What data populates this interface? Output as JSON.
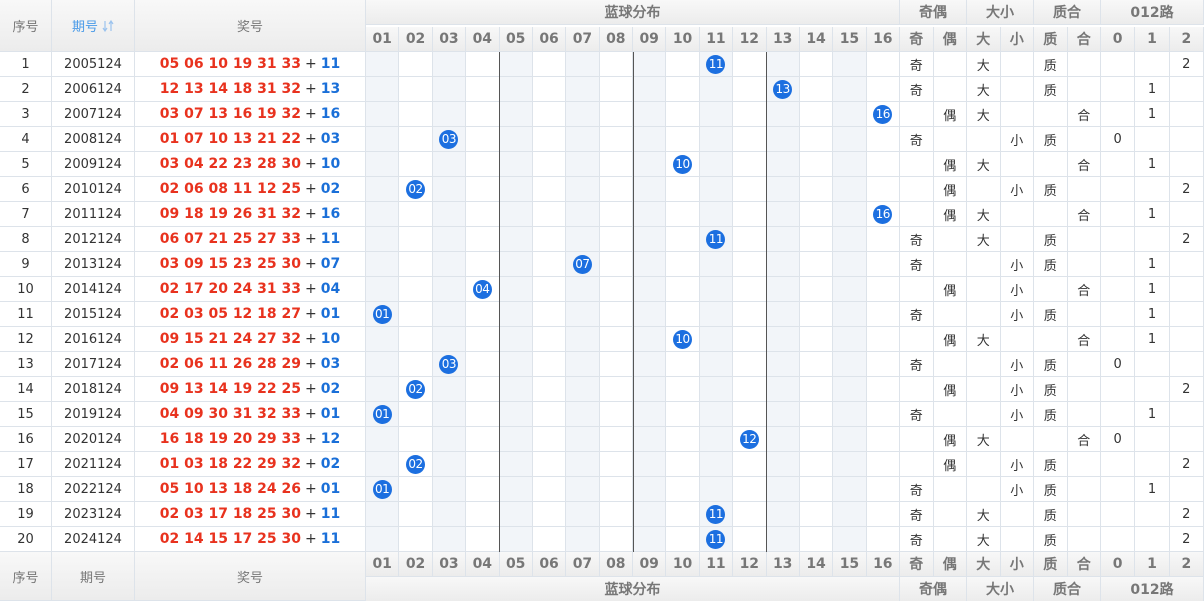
{
  "header": {
    "seq": "序号",
    "period": "期号",
    "award": "奖号",
    "blue_dist": "蓝球分布",
    "groups": [
      "奇偶",
      "大小",
      "质合",
      "012路"
    ],
    "blue_cols": [
      "01",
      "02",
      "03",
      "04",
      "05",
      "06",
      "07",
      "08",
      "09",
      "10",
      "11",
      "12",
      "13",
      "14",
      "15",
      "16"
    ],
    "sub_cols": [
      "奇",
      "偶",
      "大",
      "小",
      "质",
      "合",
      "0",
      "1",
      "2"
    ]
  },
  "rows": [
    {
      "seq": "1",
      "period": "2005124",
      "reds": "05 06 10 19 31 33",
      "plus": "+",
      "blue": "11",
      "parity": "奇",
      "size": "大",
      "prime": "质",
      "mod": "2"
    },
    {
      "seq": "2",
      "period": "2006124",
      "reds": "12 13 14 18 31 32",
      "plus": "+",
      "blue": "13",
      "parity": "奇",
      "size": "大",
      "prime": "质",
      "mod": "1"
    },
    {
      "seq": "3",
      "period": "2007124",
      "reds": "03 07 13 16 19 32",
      "plus": "+",
      "blue": "16",
      "parity": "偶",
      "size": "大",
      "prime": "合",
      "mod": "1"
    },
    {
      "seq": "4",
      "period": "2008124",
      "reds": "01 07 10 13 21 22",
      "plus": "+",
      "blue": "03",
      "parity": "奇",
      "size": "小",
      "prime": "质",
      "mod": "0"
    },
    {
      "seq": "5",
      "period": "2009124",
      "reds": "03 04 22 23 28 30",
      "plus": "+",
      "blue": "10",
      "parity": "偶",
      "size": "大",
      "prime": "合",
      "mod": "1"
    },
    {
      "seq": "6",
      "period": "2010124",
      "reds": "02 06 08 11 12 25",
      "plus": "+",
      "blue": "02",
      "parity": "偶",
      "size": "小",
      "prime": "质",
      "mod": "2"
    },
    {
      "seq": "7",
      "period": "2011124",
      "reds": "09 18 19 26 31 32",
      "plus": "+",
      "blue": "16",
      "parity": "偶",
      "size": "大",
      "prime": "合",
      "mod": "1"
    },
    {
      "seq": "8",
      "period": "2012124",
      "reds": "06 07 21 25 27 33",
      "plus": "+",
      "blue": "11",
      "parity": "奇",
      "size": "大",
      "prime": "质",
      "mod": "2"
    },
    {
      "seq": "9",
      "period": "2013124",
      "reds": "03 09 15 23 25 30",
      "plus": "+",
      "blue": "07",
      "parity": "奇",
      "size": "小",
      "prime": "质",
      "mod": "1"
    },
    {
      "seq": "10",
      "period": "2014124",
      "reds": "02 17 20 24 31 33",
      "plus": "+",
      "blue": "04",
      "parity": "偶",
      "size": "小",
      "prime": "合",
      "mod": "1"
    },
    {
      "seq": "11",
      "period": "2015124",
      "reds": "02 03 05 12 18 27",
      "plus": "+",
      "blue": "01",
      "parity": "奇",
      "size": "小",
      "prime": "质",
      "mod": "1"
    },
    {
      "seq": "12",
      "period": "2016124",
      "reds": "09 15 21 24 27 32",
      "plus": "+",
      "blue": "10",
      "parity": "偶",
      "size": "大",
      "prime": "合",
      "mod": "1"
    },
    {
      "seq": "13",
      "period": "2017124",
      "reds": "02 06 11 26 28 29",
      "plus": "+",
      "blue": "03",
      "parity": "奇",
      "size": "小",
      "prime": "质",
      "mod": "0"
    },
    {
      "seq": "14",
      "period": "2018124",
      "reds": "09 13 14 19 22 25",
      "plus": "+",
      "blue": "02",
      "parity": "偶",
      "size": "小",
      "prime": "质",
      "mod": "2"
    },
    {
      "seq": "15",
      "period": "2019124",
      "reds": "04 09 30 31 32 33",
      "plus": "+",
      "blue": "01",
      "parity": "奇",
      "size": "小",
      "prime": "质",
      "mod": "1"
    },
    {
      "seq": "16",
      "period": "2020124",
      "reds": "16 18 19 20 29 33",
      "plus": "+",
      "blue": "12",
      "parity": "偶",
      "size": "大",
      "prime": "合",
      "mod": "0"
    },
    {
      "seq": "17",
      "period": "2021124",
      "reds": "01 03 18 22 29 32",
      "plus": "+",
      "blue": "02",
      "parity": "偶",
      "size": "小",
      "prime": "质",
      "mod": "2"
    },
    {
      "seq": "18",
      "period": "2022124",
      "reds": "05 10 13 18 24 26",
      "plus": "+",
      "blue": "01",
      "parity": "奇",
      "size": "小",
      "prime": "质",
      "mod": "1"
    },
    {
      "seq": "19",
      "period": "2023124",
      "reds": "02 03 17 18 25 30",
      "plus": "+",
      "blue": "11",
      "parity": "奇",
      "size": "大",
      "prime": "质",
      "mod": "2"
    },
    {
      "seq": "20",
      "period": "2024124",
      "reds": "02 14 15 17 25 30",
      "plus": "+",
      "blue": "11",
      "parity": "奇",
      "size": "大",
      "prime": "质",
      "mod": "2"
    }
  ]
}
